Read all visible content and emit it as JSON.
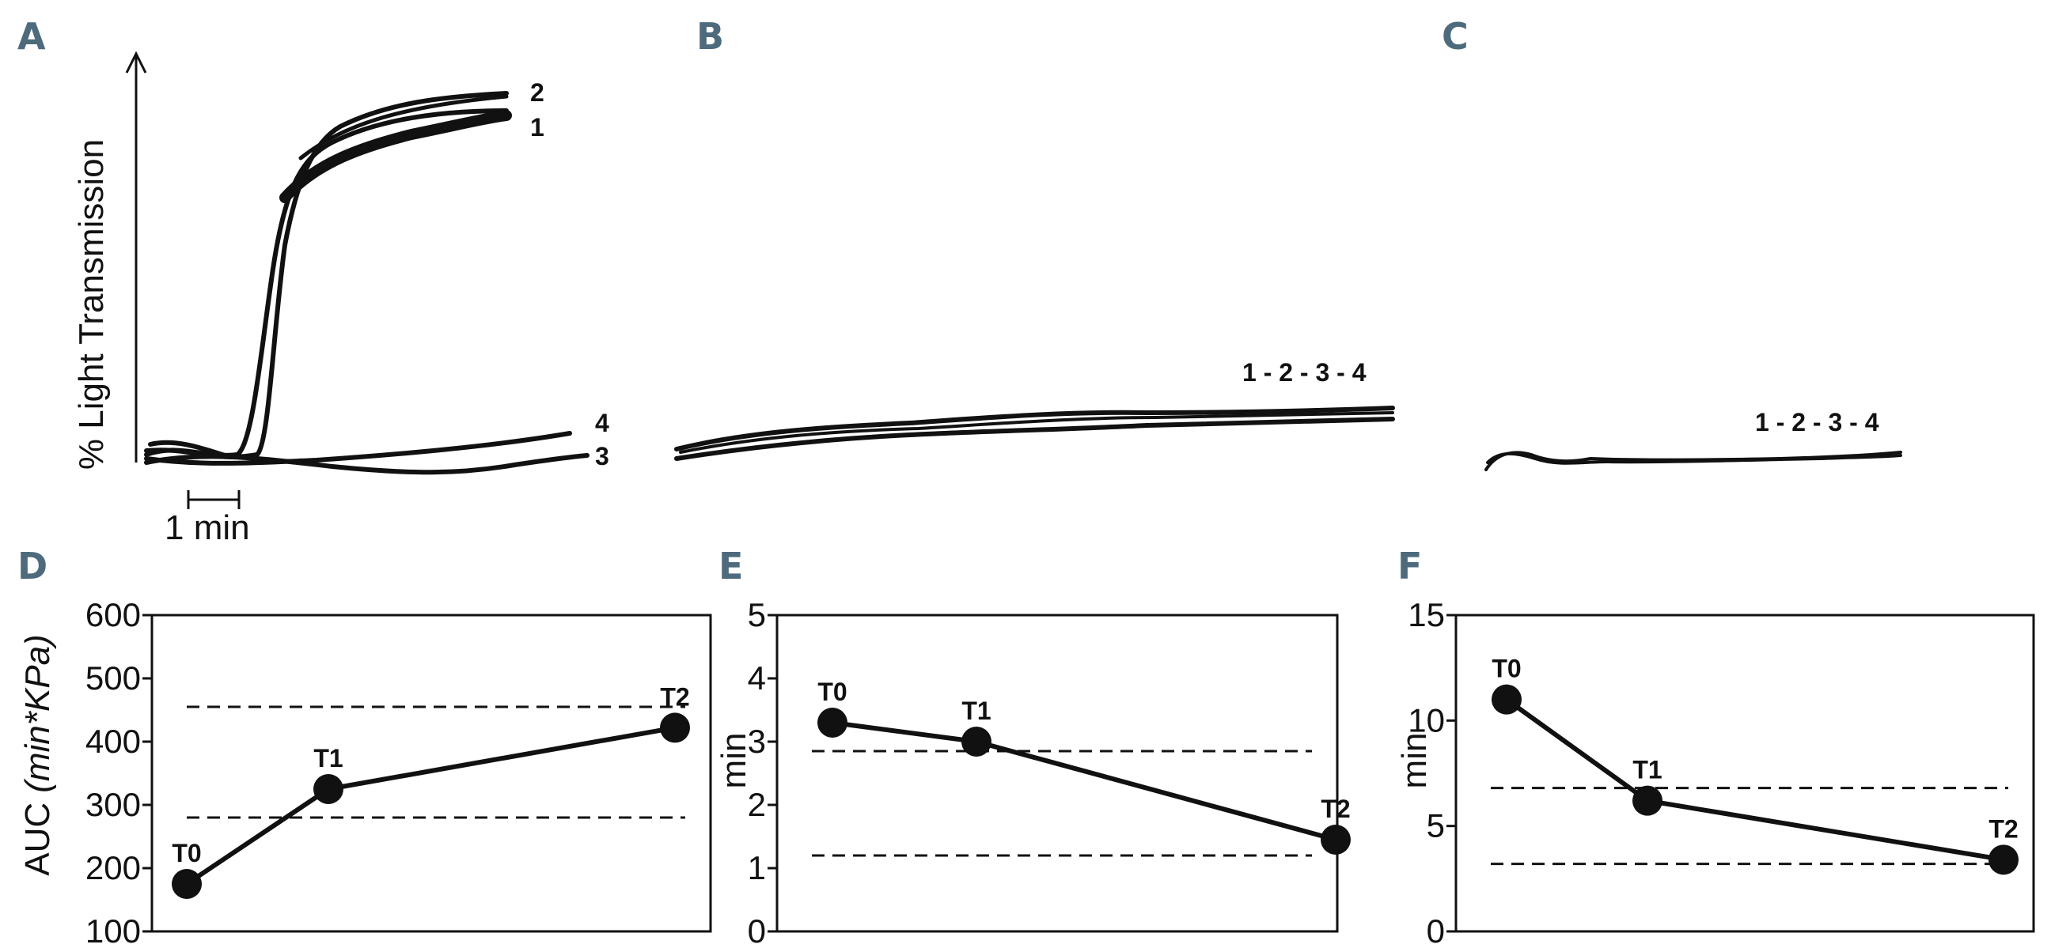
{
  "panels": {
    "A": "A",
    "B": "B",
    "C": "C",
    "D": "D",
    "E": "E",
    "F": "F"
  },
  "aggregometry": {
    "ylabel": "% Light Transmission",
    "scale_bar_label": "1 min",
    "A_curve_labels": [
      "2",
      "1",
      "4",
      "3"
    ],
    "B_label": "1 - 2 - 3 - 4",
    "C_label": "1 - 2 - 3 - 4"
  },
  "chart_data": [
    {
      "panel": "D",
      "type": "line",
      "ylabel": "AUC",
      "ylabel_unit": "(min*KPa)",
      "categories": [
        "T0",
        "T1",
        "T2"
      ],
      "values": [
        175,
        325,
        422
      ],
      "ylim": [
        100,
        600
      ],
      "yticks": [
        "100",
        "200",
        "300",
        "400",
        "500",
        "600"
      ],
      "reference_lines": [
        280,
        455
      ],
      "grid": false
    },
    {
      "panel": "E",
      "type": "line",
      "ylabel": "min",
      "categories": [
        "T0",
        "T1",
        "T2"
      ],
      "values": [
        3.3,
        3.0,
        1.45
      ],
      "ylim": [
        0,
        5
      ],
      "yticks": [
        "0",
        "1",
        "2",
        "3",
        "4",
        "5"
      ],
      "reference_lines": [
        1.2,
        2.85
      ],
      "grid": false
    },
    {
      "panel": "F",
      "type": "line",
      "ylabel": "min",
      "categories": [
        "T0",
        "T1",
        "T2"
      ],
      "values": [
        11.0,
        6.2,
        3.4
      ],
      "ylim": [
        0,
        15
      ],
      "yticks": [
        "0",
        "5",
        "10",
        "15"
      ],
      "reference_lines": [
        3.2,
        6.8
      ],
      "grid": false
    }
  ]
}
